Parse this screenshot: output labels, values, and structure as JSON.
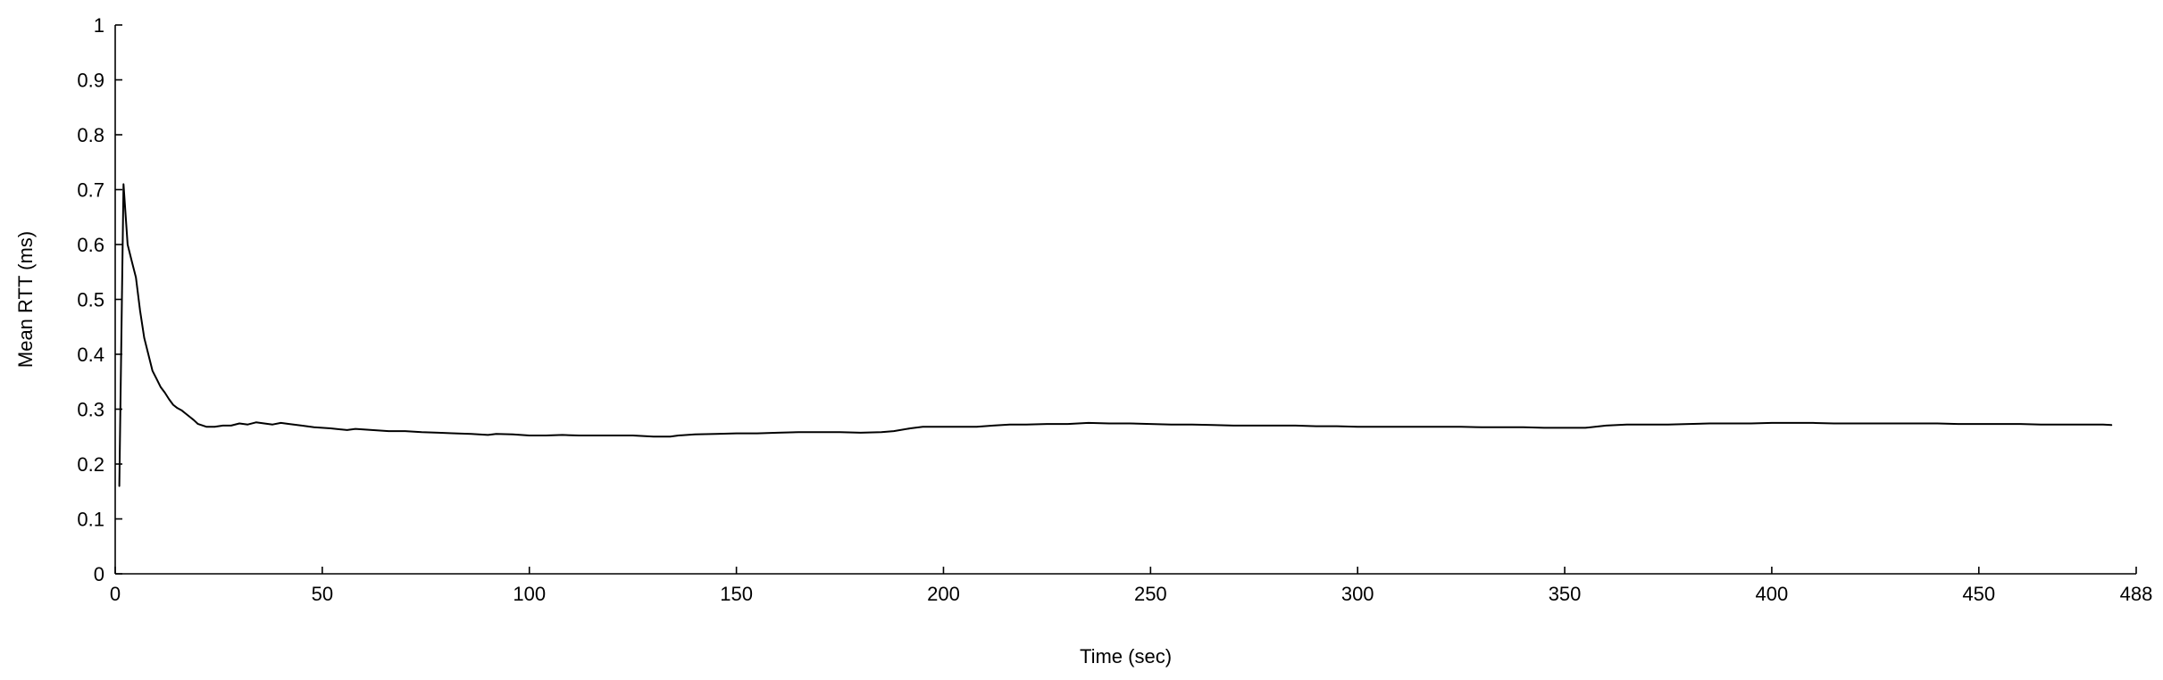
{
  "chart_data": {
    "type": "line",
    "title": "",
    "xlabel": "Time (sec)",
    "ylabel": "Mean RTT (ms)",
    "xlim": [
      0,
      488
    ],
    "ylim": [
      0,
      1
    ],
    "xticks": [
      0,
      50,
      100,
      150,
      200,
      250,
      300,
      350,
      400,
      450,
      488
    ],
    "xtick_labels": [
      "0",
      "50",
      "100",
      "150",
      "200",
      "250",
      "300",
      "350",
      "400",
      "450",
      "488"
    ],
    "yticks": [
      0,
      0.1,
      0.2,
      0.3,
      0.4,
      0.5,
      0.6,
      0.7,
      0.8,
      0.9,
      1
    ],
    "ytick_labels": [
      "0",
      "0.1",
      "0.2",
      "0.3",
      "0.4",
      "0.5",
      "0.6",
      "0.7",
      "0.8",
      "0.9",
      "1"
    ],
    "grid": false,
    "legend": "none",
    "series": [
      {
        "name": "Mean RTT",
        "color": "#000000",
        "x": [
          1,
          2,
          3,
          4,
          5,
          6,
          7,
          8,
          9,
          10,
          11,
          12,
          13,
          14,
          15,
          16,
          17,
          18,
          19,
          20,
          22,
          24,
          26,
          28,
          30,
          32,
          34,
          36,
          38,
          40,
          42,
          45,
          48,
          52,
          56,
          58,
          62,
          66,
          70,
          74,
          78,
          82,
          86,
          90,
          92,
          96,
          100,
          104,
          108,
          112,
          116,
          120,
          125,
          130,
          134,
          136,
          140,
          145,
          150,
          155,
          160,
          165,
          170,
          175,
          180,
          185,
          188,
          192,
          195,
          200,
          205,
          208,
          212,
          216,
          220,
          225,
          230,
          235,
          240,
          245,
          250,
          255,
          260,
          265,
          270,
          275,
          280,
          285,
          290,
          295,
          300,
          305,
          310,
          315,
          320,
          325,
          330,
          335,
          340,
          345,
          350,
          355,
          360,
          365,
          370,
          375,
          380,
          385,
          390,
          395,
          400,
          405,
          410,
          415,
          420,
          425,
          430,
          435,
          440,
          445,
          450,
          455,
          460,
          465,
          470,
          475,
          480,
          482
        ],
        "y": [
          0.16,
          0.71,
          0.6,
          0.57,
          0.54,
          0.48,
          0.43,
          0.4,
          0.37,
          0.355,
          0.34,
          0.33,
          0.318,
          0.308,
          0.302,
          0.298,
          0.292,
          0.286,
          0.28,
          0.273,
          0.268,
          0.268,
          0.27,
          0.27,
          0.274,
          0.272,
          0.276,
          0.274,
          0.272,
          0.275,
          0.273,
          0.27,
          0.267,
          0.265,
          0.262,
          0.264,
          0.262,
          0.26,
          0.26,
          0.258,
          0.257,
          0.256,
          0.255,
          0.253,
          0.255,
          0.254,
          0.252,
          0.252,
          0.253,
          0.252,
          0.252,
          0.252,
          0.252,
          0.25,
          0.25,
          0.252,
          0.254,
          0.255,
          0.256,
          0.256,
          0.257,
          0.258,
          0.258,
          0.258,
          0.257,
          0.258,
          0.26,
          0.265,
          0.268,
          0.268,
          0.268,
          0.268,
          0.27,
          0.272,
          0.272,
          0.273,
          0.273,
          0.275,
          0.274,
          0.274,
          0.273,
          0.272,
          0.272,
          0.271,
          0.27,
          0.27,
          0.27,
          0.27,
          0.269,
          0.269,
          0.268,
          0.268,
          0.268,
          0.268,
          0.268,
          0.268,
          0.267,
          0.267,
          0.267,
          0.266,
          0.266,
          0.266,
          0.27,
          0.272,
          0.272,
          0.272,
          0.273,
          0.274,
          0.274,
          0.274,
          0.275,
          0.275,
          0.275,
          0.274,
          0.274,
          0.274,
          0.274,
          0.274,
          0.274,
          0.273,
          0.273,
          0.273,
          0.273,
          0.272,
          0.272,
          0.272,
          0.272,
          0.271
        ]
      }
    ]
  }
}
